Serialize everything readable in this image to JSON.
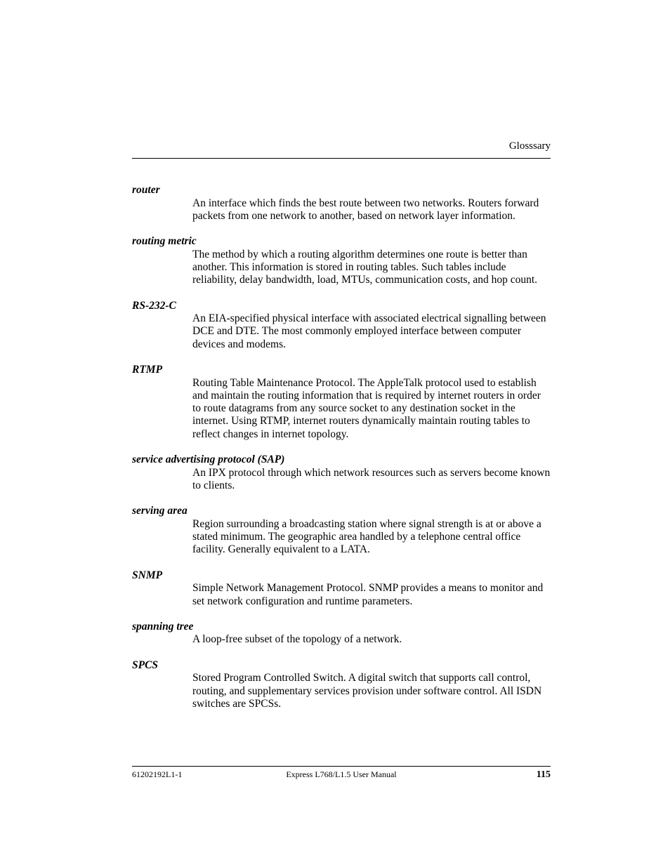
{
  "header": {
    "section": "Glosssary"
  },
  "entries": [
    {
      "term": "router",
      "definition": "An interface which finds the best route between two networks.  Routers forward packets from one network to another, based on network layer information."
    },
    {
      "term": "routing metric",
      "definition": "The method by which a routing algorithm determines one route is better than another.  This information is stored in routing tables.  Such tables include reliability, delay bandwidth, load, MTUs, communication costs, and hop count."
    },
    {
      "term": "RS-232-C",
      "definition": "An EIA-specified physical interface with associated electrical signalling between DCE  and DTE.  The most commonly employed interface between computer devices and modems."
    },
    {
      "term": "RTMP",
      "definition": "Routing Table Maintenance Protocol.  The AppleTalk protocol used to establish and maintain the routing information that is required by internet routers in order to route datagrams from any source socket to any destination socket in the internet.  Using RTMP, internet routers dynamically maintain routing tables to reflect changes in internet topology."
    },
    {
      "term": "service advertising protocol (SAP)",
      "definition": "An IPX protocol through which network resources such as servers become known to clients."
    },
    {
      "term": "serving area",
      "definition": "Region surrounding a broadcasting station where signal strength is at or above a stated minimum.  The geographic area handled by a telephone central office facility.  Generally equivalent to a LATA."
    },
    {
      "term": "SNMP",
      "definition": "Simple Network Management Protocol.  SNMP provides a means to monitor and set network configuration and runtime parameters."
    },
    {
      "term": "spanning tree",
      "definition": "A loop-free subset of the topology of a network."
    },
    {
      "term": "SPCS",
      "definition": "Stored Program Controlled Switch.  A digital switch that supports call control, routing, and supplementary services provision under software control.  All ISDN switches are SPCSs."
    }
  ],
  "footer": {
    "doc_id": "61202192L1-1",
    "manual_title": "Express L768/L1.5 User Manual",
    "page_number": "115"
  },
  "colors": {
    "text": "#000000",
    "background": "#ffffff",
    "rule": "#000000"
  },
  "typography": {
    "body_font": "Palatino / Book Antiqua serif",
    "body_size_pt": 11,
    "term_style": "bold italic",
    "footer_size_pt": 8
  }
}
